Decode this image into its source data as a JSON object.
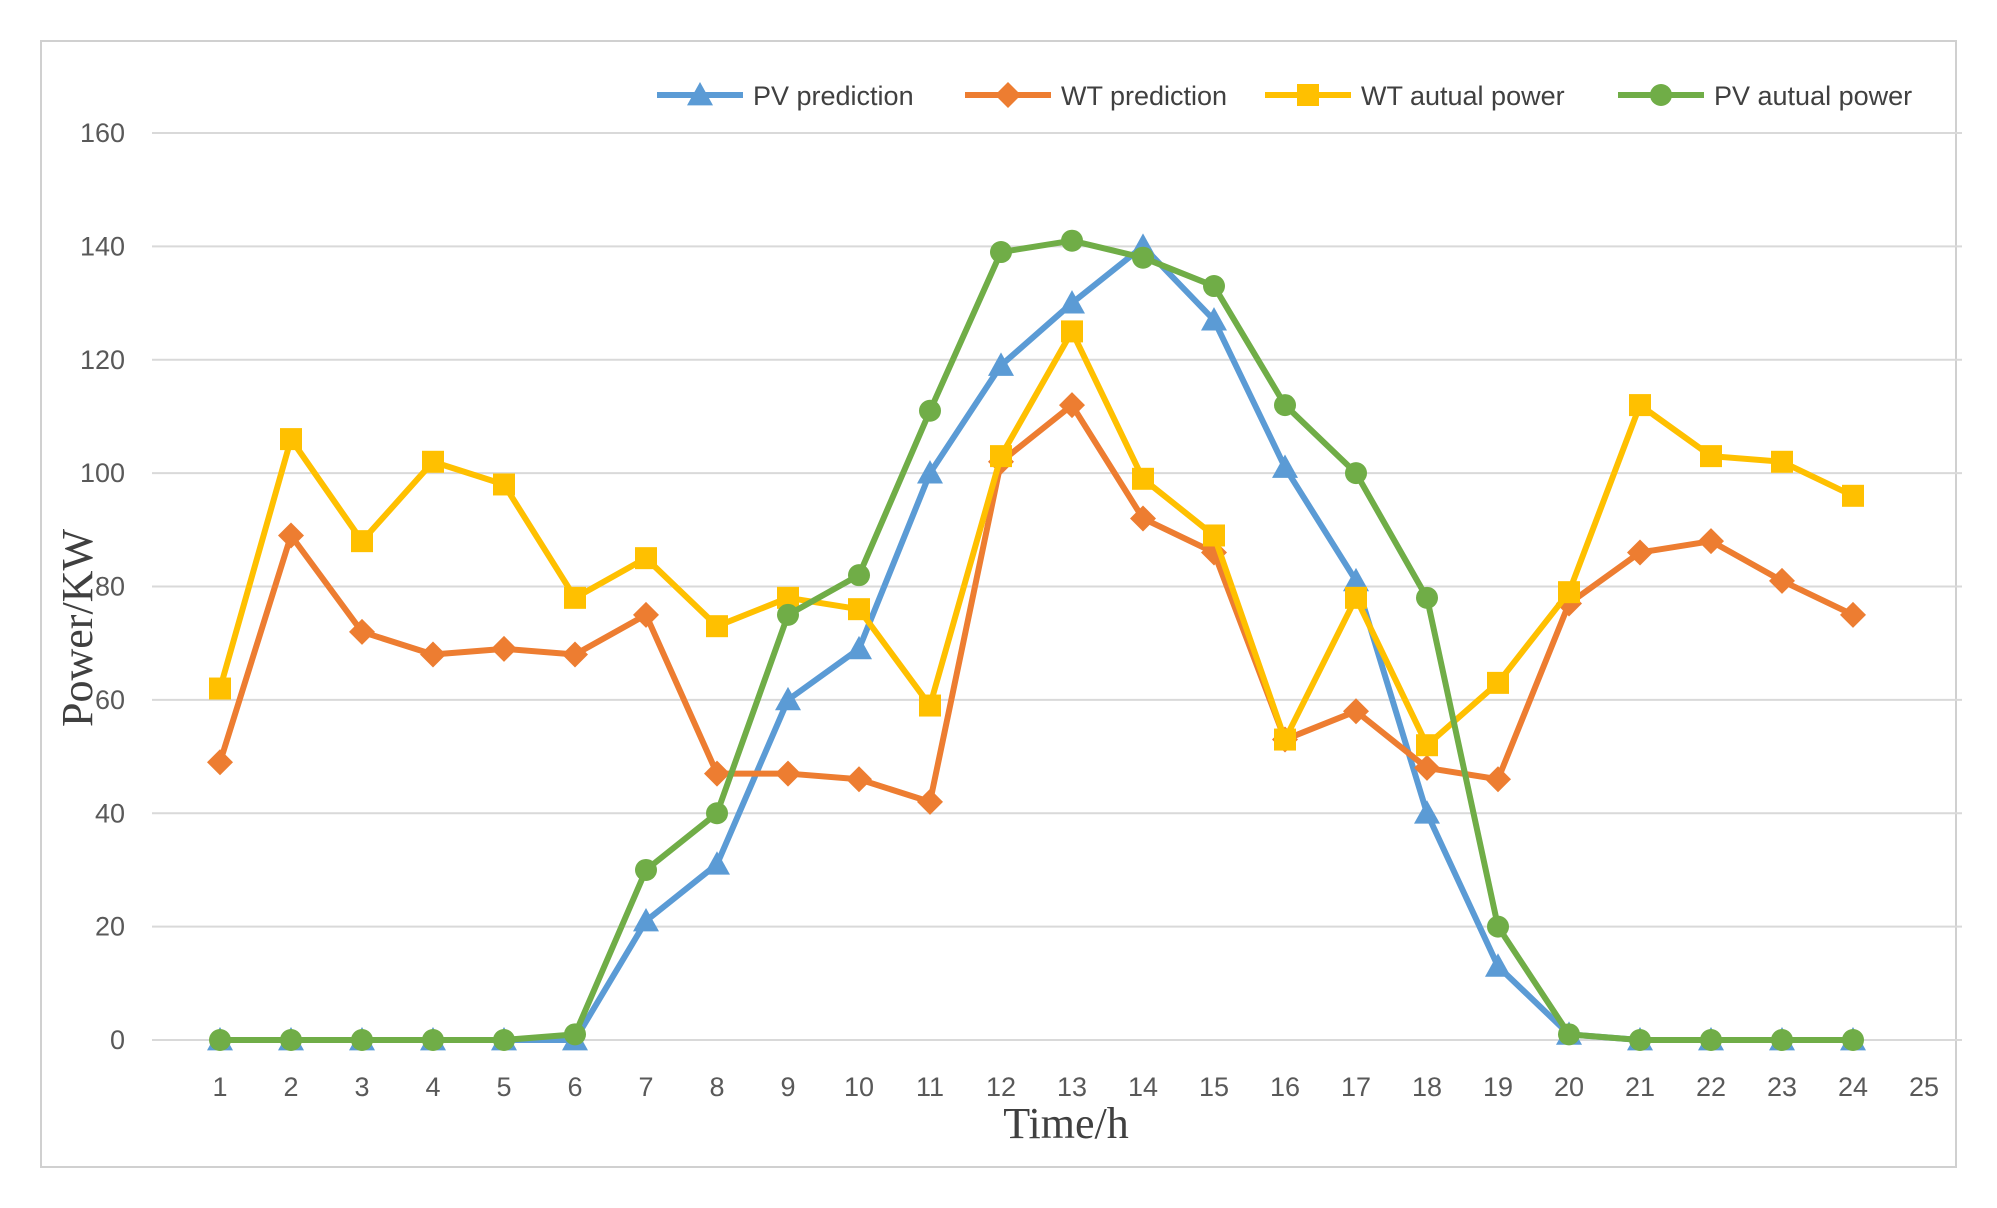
{
  "chart_data": {
    "type": "line",
    "title": "",
    "xlabel": "Time/h",
    "ylabel": "Power/KW",
    "x": [
      1,
      2,
      3,
      4,
      5,
      6,
      7,
      8,
      9,
      10,
      11,
      12,
      13,
      14,
      15,
      16,
      17,
      18,
      19,
      20,
      21,
      22,
      23,
      24
    ],
    "x_ticks": [
      "1",
      "2",
      "3",
      "4",
      "5",
      "6",
      "7",
      "8",
      "9",
      "10",
      "11",
      "12",
      "13",
      "14",
      "15",
      "16",
      "17",
      "18",
      "19",
      "20",
      "21",
      "22",
      "23",
      "24",
      "25"
    ],
    "y_ticks": [
      "0",
      "20",
      "40",
      "60",
      "80",
      "100",
      "120",
      "140",
      "160"
    ],
    "xlim": [
      1,
      25
    ],
    "ylim": [
      0,
      160
    ],
    "grid": true,
    "legend_position": "top-right",
    "series": [
      {
        "name": "PV prediction",
        "color": "#5b9bd5",
        "marker": "triangle",
        "values": [
          0,
          0,
          0,
          0,
          0,
          0,
          21,
          31,
          60,
          69,
          100,
          119,
          130,
          140,
          127,
          101,
          81,
          40,
          13,
          1,
          0,
          0,
          0,
          0
        ]
      },
      {
        "name": "WT prediction",
        "color": "#ed7d31",
        "marker": "diamond",
        "values": [
          49,
          89,
          72,
          68,
          69,
          68,
          75,
          47,
          47,
          46,
          42,
          102,
          112,
          92,
          86,
          53,
          58,
          48,
          46,
          77,
          86,
          88,
          81,
          75
        ]
      },
      {
        "name": "WT autual power",
        "color": "#ffc000",
        "marker": "square",
        "values": [
          62,
          106,
          88,
          102,
          98,
          78,
          85,
          73,
          78,
          76,
          59,
          103,
          125,
          99,
          89,
          53,
          78,
          52,
          63,
          79,
          112,
          103,
          102,
          96
        ]
      },
      {
        "name": "PV autual power",
        "color": "#70ad47",
        "marker": "circle",
        "values": [
          0,
          0,
          0,
          0,
          0,
          1,
          30,
          40,
          75,
          82,
          111,
          139,
          141,
          138,
          133,
          112,
          100,
          78,
          20,
          1,
          0,
          0,
          0,
          0
        ]
      }
    ]
  }
}
